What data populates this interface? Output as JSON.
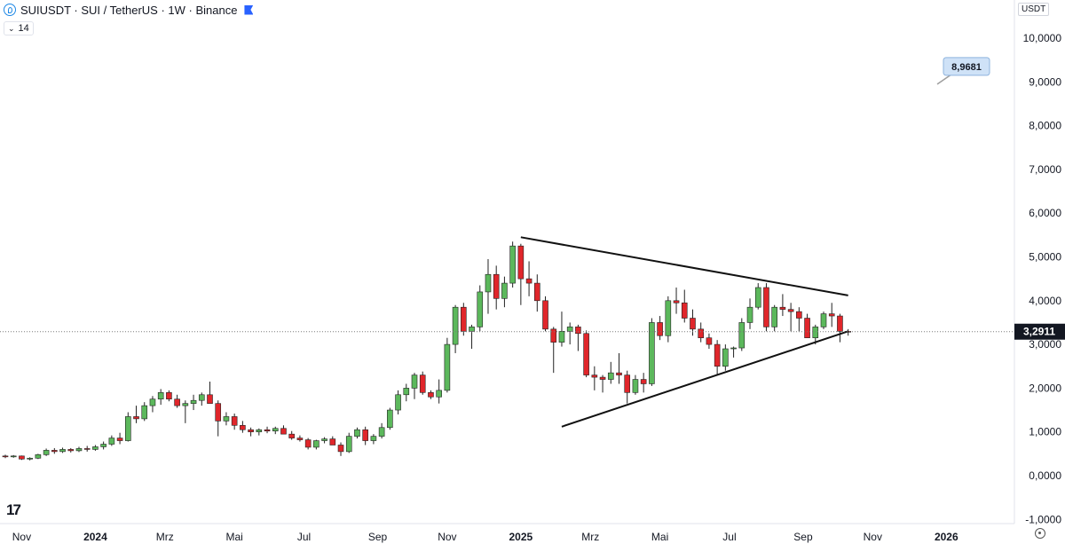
{
  "header": {
    "title": "SUIUSDT · SUI / TetherUS · 1W · Binance",
    "indicator": "14",
    "currency": "USDT"
  },
  "price_label": "3,2911",
  "annotation_label": "8,9681",
  "brand": "17",
  "colors": {
    "up": "#5cb85c",
    "down": "#e0262b",
    "price_line": "#7a7a7a",
    "annotation_bg": "#cfe2f7"
  },
  "chart_data": {
    "type": "candlestick",
    "ylim": [
      -1.0,
      10.6
    ],
    "y_ticks": [
      -1,
      0,
      1,
      2,
      3,
      4,
      5,
      6,
      7,
      8,
      9,
      10
    ],
    "y_tick_labels": [
      "-1,0000",
      "0,0000",
      "1,0000",
      "2,0000",
      "3,0000",
      "4,0000",
      "5,0000",
      "6,0000",
      "7,0000",
      "8,0000",
      "9,0000",
      "10,0000"
    ],
    "x_ticks": [
      {
        "label": "Nov",
        "week": 2
      },
      {
        "label": "2024",
        "week": 11
      },
      {
        "label": "Mrz",
        "week": 19.5
      },
      {
        "label": "Mai",
        "week": 28
      },
      {
        "label": "Jul",
        "week": 36.5
      },
      {
        "label": "Sep",
        "week": 45.5
      },
      {
        "label": "Nov",
        "week": 54
      },
      {
        "label": "2025",
        "week": 63
      },
      {
        "label": "Mrz",
        "week": 71.5
      },
      {
        "label": "Mai",
        "week": 80
      },
      {
        "label": "Jul",
        "week": 88.5
      },
      {
        "label": "Sep",
        "week": 97.5
      },
      {
        "label": "Nov",
        "week": 106
      },
      {
        "label": "2026",
        "week": 115
      }
    ],
    "last_price": 3.2911,
    "annotation_price": 8.9681,
    "candles": [
      [
        0.45,
        0.48,
        0.4,
        0.44
      ],
      [
        0.44,
        0.47,
        0.41,
        0.45
      ],
      [
        0.45,
        0.46,
        0.36,
        0.38
      ],
      [
        0.38,
        0.42,
        0.35,
        0.4
      ],
      [
        0.4,
        0.5,
        0.38,
        0.48
      ],
      [
        0.48,
        0.62,
        0.45,
        0.58
      ],
      [
        0.58,
        0.63,
        0.5,
        0.55
      ],
      [
        0.55,
        0.64,
        0.52,
        0.6
      ],
      [
        0.6,
        0.63,
        0.53,
        0.57
      ],
      [
        0.57,
        0.66,
        0.54,
        0.62
      ],
      [
        0.62,
        0.68,
        0.55,
        0.6
      ],
      [
        0.6,
        0.7,
        0.57,
        0.66
      ],
      [
        0.66,
        0.78,
        0.6,
        0.72
      ],
      [
        0.72,
        0.92,
        0.68,
        0.86
      ],
      [
        0.86,
        0.98,
        0.72,
        0.8
      ],
      [
        0.8,
        1.45,
        0.78,
        1.35
      ],
      [
        1.35,
        1.6,
        1.2,
        1.3
      ],
      [
        1.3,
        1.68,
        1.25,
        1.6
      ],
      [
        1.6,
        1.82,
        1.45,
        1.75
      ],
      [
        1.75,
        1.98,
        1.62,
        1.9
      ],
      [
        1.9,
        1.95,
        1.7,
        1.75
      ],
      [
        1.75,
        1.85,
        1.55,
        1.6
      ],
      [
        1.6,
        1.72,
        1.2,
        1.65
      ],
      [
        1.65,
        1.85,
        1.5,
        1.72
      ],
      [
        1.72,
        1.9,
        1.6,
        1.85
      ],
      [
        1.85,
        2.15,
        1.75,
        1.65
      ],
      [
        1.65,
        1.72,
        0.9,
        1.25
      ],
      [
        1.25,
        1.45,
        1.15,
        1.35
      ],
      [
        1.35,
        1.42,
        1.05,
        1.15
      ],
      [
        1.15,
        1.25,
        0.98,
        1.05
      ],
      [
        1.05,
        1.1,
        0.9,
        1.0
      ],
      [
        1.0,
        1.08,
        0.92,
        1.05
      ],
      [
        1.05,
        1.12,
        0.97,
        1.02
      ],
      [
        1.02,
        1.12,
        0.95,
        1.08
      ],
      [
        1.08,
        1.15,
        0.98,
        0.95
      ],
      [
        0.95,
        1.02,
        0.82,
        0.86
      ],
      [
        0.86,
        0.92,
        0.78,
        0.82
      ],
      [
        0.82,
        0.86,
        0.6,
        0.65
      ],
      [
        0.65,
        0.82,
        0.6,
        0.8
      ],
      [
        0.8,
        0.88,
        0.74,
        0.84
      ],
      [
        0.84,
        0.9,
        0.78,
        0.7
      ],
      [
        0.7,
        0.76,
        0.45,
        0.55
      ],
      [
        0.55,
        0.98,
        0.52,
        0.9
      ],
      [
        0.9,
        1.1,
        0.85,
        1.05
      ],
      [
        1.05,
        1.12,
        0.7,
        0.8
      ],
      [
        0.8,
        0.95,
        0.72,
        0.9
      ],
      [
        0.9,
        1.2,
        0.85,
        1.1
      ],
      [
        1.1,
        1.55,
        1.05,
        1.5
      ],
      [
        1.5,
        1.95,
        1.4,
        1.85
      ],
      [
        1.85,
        2.1,
        1.7,
        2.0
      ],
      [
        2.0,
        2.35,
        1.75,
        2.3
      ],
      [
        2.3,
        2.38,
        1.85,
        1.9
      ],
      [
        1.9,
        1.95,
        1.75,
        1.8
      ],
      [
        1.8,
        2.2,
        1.65,
        1.95
      ],
      [
        1.95,
        3.15,
        1.9,
        3.0
      ],
      [
        3.0,
        3.9,
        2.8,
        3.85
      ],
      [
        3.85,
        3.95,
        3.2,
        3.3
      ],
      [
        3.3,
        3.45,
        2.9,
        3.4
      ],
      [
        3.4,
        4.35,
        3.3,
        4.2
      ],
      [
        4.2,
        4.95,
        3.7,
        4.6
      ],
      [
        4.6,
        4.8,
        3.8,
        4.05
      ],
      [
        4.05,
        4.55,
        3.85,
        4.4
      ],
      [
        4.4,
        5.35,
        4.3,
        5.25
      ],
      [
        5.25,
        5.3,
        3.9,
        4.5
      ],
      [
        4.5,
        4.9,
        4.1,
        4.4
      ],
      [
        4.4,
        4.6,
        3.75,
        4.0
      ],
      [
        4.0,
        4.1,
        3.3,
        3.35
      ],
      [
        3.35,
        3.4,
        2.35,
        3.05
      ],
      [
        3.05,
        3.75,
        2.95,
        3.3
      ],
      [
        3.3,
        3.5,
        3.0,
        3.4
      ],
      [
        3.4,
        3.45,
        2.85,
        3.25
      ],
      [
        3.25,
        3.32,
        2.25,
        2.3
      ],
      [
        2.3,
        2.5,
        1.95,
        2.25
      ],
      [
        2.25,
        2.3,
        1.9,
        2.2
      ],
      [
        2.2,
        2.6,
        2.1,
        2.35
      ],
      [
        2.35,
        2.8,
        2.1,
        2.3
      ],
      [
        2.3,
        2.4,
        1.65,
        1.9
      ],
      [
        1.9,
        2.3,
        1.85,
        2.2
      ],
      [
        2.2,
        2.35,
        1.9,
        2.1
      ],
      [
        2.1,
        3.6,
        2.05,
        3.5
      ],
      [
        3.5,
        3.65,
        3.1,
        3.2
      ],
      [
        3.2,
        4.1,
        3.05,
        4.0
      ],
      [
        4.0,
        4.3,
        3.7,
        3.95
      ],
      [
        3.95,
        4.25,
        3.5,
        3.6
      ],
      [
        3.6,
        3.8,
        3.2,
        3.35
      ],
      [
        3.35,
        3.5,
        3.05,
        3.15
      ],
      [
        3.15,
        3.25,
        2.9,
        3.0
      ],
      [
        3.0,
        3.1,
        2.3,
        2.5
      ],
      [
        2.5,
        3.0,
        2.4,
        2.9
      ],
      [
        2.9,
        2.95,
        2.7,
        2.92
      ],
      [
        2.92,
        3.6,
        2.85,
        3.5
      ],
      [
        3.5,
        4.05,
        3.35,
        3.85
      ],
      [
        3.85,
        4.4,
        3.8,
        4.3
      ],
      [
        4.3,
        4.4,
        3.3,
        3.4
      ],
      [
        3.4,
        3.9,
        3.3,
        3.85
      ],
      [
        3.85,
        4.15,
        3.65,
        3.8
      ],
      [
        3.8,
        3.95,
        3.3,
        3.75
      ],
      [
        3.75,
        3.85,
        3.3,
        3.6
      ],
      [
        3.6,
        3.7,
        3.15,
        3.15
      ],
      [
        3.15,
        3.45,
        3.0,
        3.4
      ],
      [
        3.4,
        3.75,
        3.35,
        3.7
      ],
      [
        3.7,
        3.95,
        3.4,
        3.65
      ],
      [
        3.65,
        3.7,
        3.05,
        3.3
      ],
      [
        3.3,
        3.35,
        3.2,
        3.29
      ]
    ],
    "trendlines": [
      {
        "from": {
          "week": 63,
          "price": 5.45
        },
        "to": {
          "week": 103,
          "price": 4.12
        }
      },
      {
        "from": {
          "week": 68,
          "price": 1.12
        },
        "to": {
          "week": 103,
          "price": 3.3
        }
      }
    ]
  }
}
